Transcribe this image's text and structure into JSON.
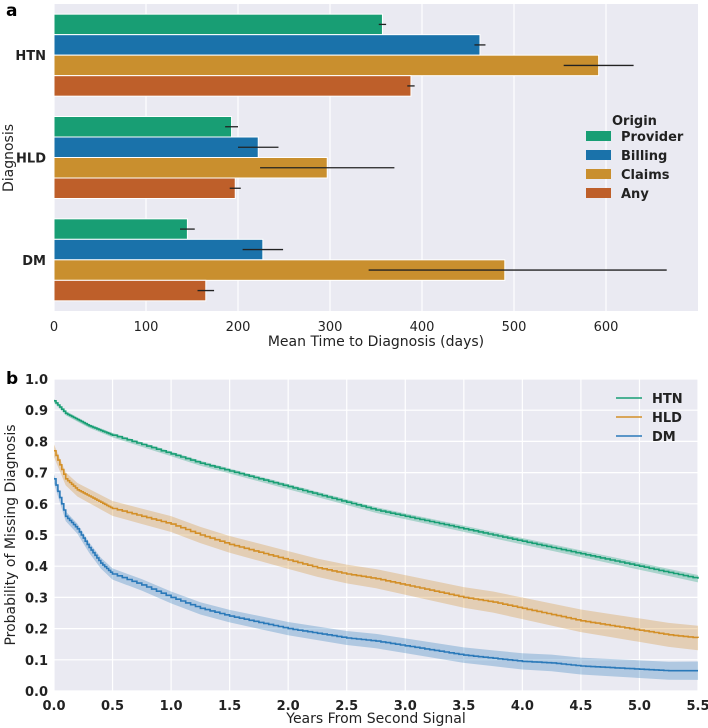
{
  "chart_data": [
    {
      "type": "bar",
      "orientation": "horizontal",
      "panel": "a",
      "categories": [
        "HTN",
        "HLD",
        "DM"
      ],
      "series": [
        {
          "name": "Provider",
          "color": "#189e74",
          "values": [
            357,
            193,
            145
          ],
          "err_low": [
            353,
            186,
            137
          ],
          "err_high": [
            361,
            200,
            153
          ]
        },
        {
          "name": "Billing",
          "color": "#1a72aa",
          "values": [
            463,
            222,
            227
          ],
          "err_low": [
            457,
            200,
            205
          ],
          "err_high": [
            469,
            244,
            249
          ]
        },
        {
          "name": "Claims",
          "color": "#c98f2e",
          "values": [
            592,
            297,
            490
          ],
          "err_low": [
            554,
            224,
            342
          ],
          "err_high": [
            630,
            370,
            666
          ]
        },
        {
          "name": "Any",
          "color": "#be5f2a",
          "values": [
            388,
            197,
            165
          ],
          "err_low": [
            384,
            191,
            156
          ],
          "err_high": [
            392,
            203,
            174
          ]
        }
      ],
      "xlabel": "Mean Time to Diagnosis (days)",
      "ylabel": "Diagnosis",
      "xlim": [
        0,
        700
      ],
      "xticks": [
        "0",
        "100",
        "200",
        "300",
        "400",
        "500",
        "600"
      ],
      "legend": {
        "title": "Origin",
        "placement": "right"
      }
    },
    {
      "type": "line",
      "panel": "b",
      "x": [
        0,
        0.1,
        0.2,
        0.3,
        0.4,
        0.5,
        0.75,
        1.0,
        1.25,
        1.5,
        1.75,
        2.0,
        2.25,
        2.5,
        2.75,
        3.0,
        3.25,
        3.5,
        3.75,
        4.0,
        4.25,
        4.5,
        4.75,
        5.0,
        5.25,
        5.5
      ],
      "series": [
        {
          "name": "HTN",
          "color": "#189e74",
          "values": [
            0.93,
            0.89,
            0.87,
            0.85,
            0.835,
            0.82,
            0.79,
            0.76,
            0.73,
            0.705,
            0.68,
            0.655,
            0.63,
            0.605,
            0.58,
            0.56,
            0.54,
            0.52,
            0.5,
            0.48,
            0.46,
            0.44,
            0.42,
            0.4,
            0.38,
            0.36
          ],
          "band": 0.006
        },
        {
          "name": "HLD",
          "color": "#d38f27",
          "values": [
            0.77,
            0.68,
            0.645,
            0.625,
            0.605,
            0.585,
            0.56,
            0.535,
            0.5,
            0.47,
            0.445,
            0.42,
            0.395,
            0.375,
            0.36,
            0.34,
            0.32,
            0.3,
            0.285,
            0.265,
            0.245,
            0.225,
            0.21,
            0.195,
            0.18,
            0.17
          ],
          "band": 0.02
        },
        {
          "name": "DM",
          "color": "#2a79b9",
          "values": [
            0.68,
            0.56,
            0.52,
            0.46,
            0.41,
            0.375,
            0.34,
            0.3,
            0.265,
            0.24,
            0.22,
            0.2,
            0.185,
            0.17,
            0.16,
            0.145,
            0.13,
            0.115,
            0.105,
            0.095,
            0.09,
            0.08,
            0.075,
            0.07,
            0.065,
            0.065
          ],
          "band": 0.015
        }
      ],
      "xlabel": "Years From Second Signal",
      "ylabel": "Probability of Missing Diagnosis",
      "xlim": [
        0,
        5.5
      ],
      "ylim": [
        0,
        1.0
      ],
      "xticks": [
        "0.0",
        "0.5",
        "1.0",
        "1.5",
        "2.0",
        "2.5",
        "3.0",
        "3.5",
        "4.0",
        "4.5",
        "5.0",
        "5.5"
      ],
      "yticks": [
        "0.0",
        "0.1",
        "0.2",
        "0.3",
        "0.4",
        "0.5",
        "0.6",
        "0.7",
        "0.8",
        "0.9",
        "1.0"
      ],
      "legend": {
        "placement": "top-right"
      }
    }
  ]
}
